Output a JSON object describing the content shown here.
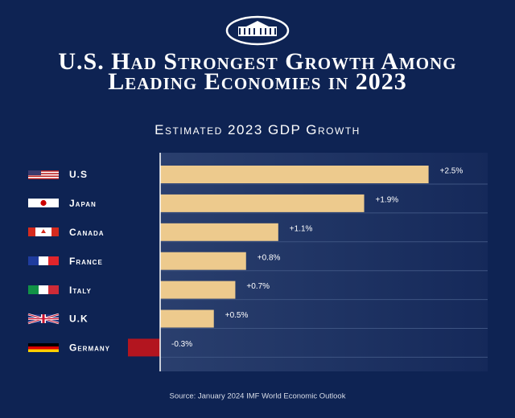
{
  "chart_data": {
    "type": "hbar",
    "title": "U.S. Had Strongest Growth Among Leading Economies in 2023",
    "subtitle": "Estimated 2023 GDP Growth",
    "categories": [
      "U.S",
      "Japan",
      "Canada",
      "France",
      "Italy",
      "U.K",
      "Germany"
    ],
    "values": [
      2.5,
      1.9,
      1.1,
      0.8,
      0.7,
      0.5,
      -0.3
    ],
    "value_labels": [
      "+2.5%",
      "+1.9%",
      "+1.1%",
      "+0.8%",
      "+0.7%",
      "+0.5%",
      "-0.3%"
    ],
    "color": "#edca8d",
    "negative_color": "#b3151f",
    "xlim": [
      -0.3,
      3.05
    ],
    "source": "Source: January 2024 IMF World Economic Outlook"
  }
}
